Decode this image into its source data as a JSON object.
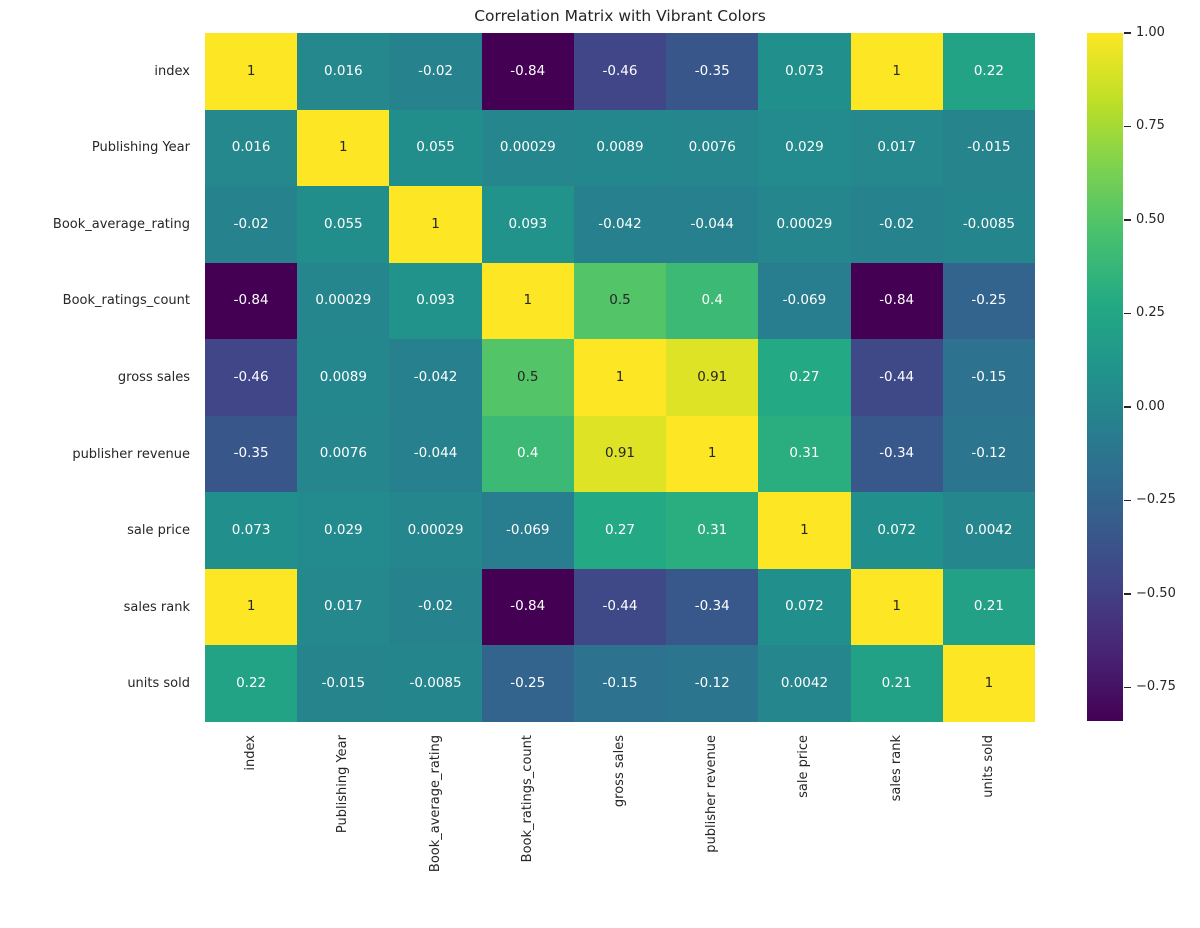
{
  "figure": {
    "background": "#ffffff",
    "text_color": "#262626"
  },
  "chart_data": {
    "type": "heatmap",
    "title": "Correlation Matrix with Vibrant Colors",
    "categories": [
      "index",
      "Publishing Year",
      "Book_average_rating",
      "Book_ratings_count",
      "gross sales",
      "publisher revenue",
      "sale price",
      "sales rank",
      "units sold"
    ],
    "matrix": [
      [
        1,
        0.016,
        -0.02,
        -0.84,
        -0.46,
        -0.35,
        0.073,
        1,
        0.22
      ],
      [
        0.016,
        1,
        0.055,
        0.00029,
        0.0089,
        0.0076,
        0.029,
        0.017,
        -0.015
      ],
      [
        -0.02,
        0.055,
        1,
        0.093,
        -0.042,
        -0.044,
        0.00029,
        -0.02,
        -0.0085
      ],
      [
        -0.84,
        0.00029,
        0.093,
        1,
        0.5,
        0.4,
        -0.069,
        -0.84,
        -0.25
      ],
      [
        -0.46,
        0.0089,
        -0.042,
        0.5,
        1,
        0.91,
        0.27,
        -0.44,
        -0.15
      ],
      [
        -0.35,
        0.0076,
        -0.044,
        0.4,
        0.91,
        1,
        0.31,
        -0.34,
        -0.12
      ],
      [
        0.073,
        0.029,
        0.00029,
        -0.069,
        0.27,
        0.31,
        1,
        0.072,
        0.0042
      ],
      [
        1,
        0.017,
        -0.02,
        -0.84,
        -0.44,
        -0.34,
        0.072,
        1,
        0.21
      ],
      [
        0.22,
        -0.015,
        -0.0085,
        -0.25,
        -0.15,
        -0.12,
        0.0042,
        0.21,
        1
      ]
    ],
    "annotation_format": "2-significant-digits",
    "colormap": "viridis",
    "viridis_stops": [
      "#440154",
      "#482475",
      "#414487",
      "#355f8d",
      "#2a788e",
      "#21918c",
      "#22a884",
      "#44bf70",
      "#7ad151",
      "#bddf26",
      "#fde725"
    ],
    "vmin": -0.84,
    "vmax": 1.0,
    "annot_dark_text": "#262626",
    "annot_light_text": "#ffffff",
    "luminance_threshold": 0.408,
    "grid": false,
    "colorbar": {
      "position": "right",
      "ticks": [
        1.0,
        0.75,
        0.5,
        0.25,
        0.0,
        -0.25,
        -0.5,
        -0.75
      ],
      "tick_labels": [
        "1.00",
        "0.75",
        "0.50",
        "0.25",
        "0.00",
        "−0.25",
        "−0.50",
        "−0.75"
      ]
    }
  }
}
